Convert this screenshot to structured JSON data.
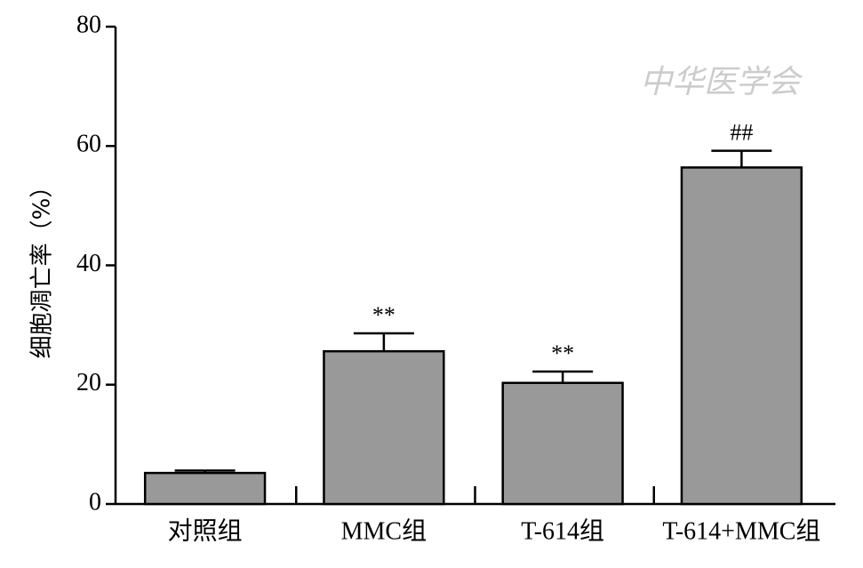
{
  "chart_data": {
    "type": "bar",
    "y_label": "细胞凋亡率（%）",
    "watermark": "中华医学会",
    "categories": [
      "对照组",
      "MMC组",
      "T-614组",
      "T-614+MMC组"
    ],
    "values": [
      5.2,
      25.6,
      20.3,
      56.4
    ],
    "errors": [
      0.4,
      3.0,
      1.9,
      2.8
    ],
    "annotations": [
      null,
      "**",
      "**",
      "##"
    ],
    "color": "#999999",
    "ylim": [
      0,
      80
    ],
    "yticks": [
      0,
      20,
      40,
      60,
      80
    ],
    "grid": false
  }
}
